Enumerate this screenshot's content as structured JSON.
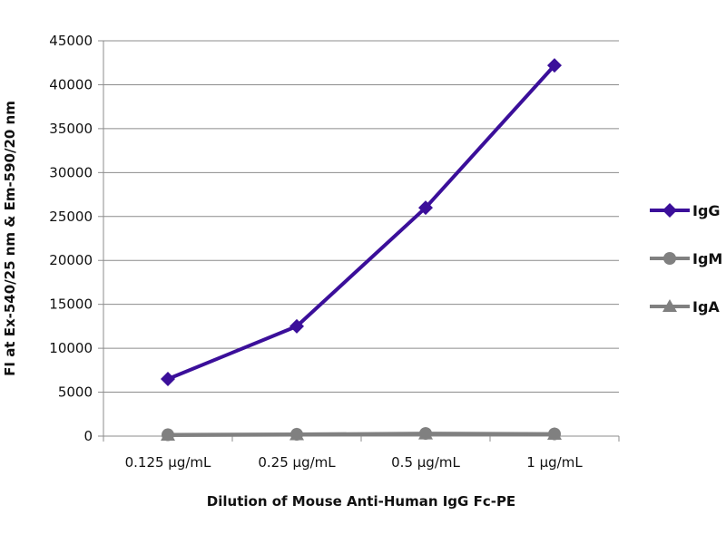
{
  "chart_data": {
    "type": "line",
    "title": "",
    "xlabel": "Dilution of Mouse Anti-Human IgG Fc-PE",
    "ylabel": "FI at Ex-540/25 nm & Em-590/20 nm",
    "categories": [
      "0.125 µg/mL",
      "0.25 µg/mL",
      "0.5 µg/mL",
      "1 µg/mL"
    ],
    "ylim": [
      0,
      45000
    ],
    "yticks": [
      0,
      5000,
      10000,
      15000,
      20000,
      25000,
      30000,
      35000,
      40000,
      45000
    ],
    "grid": true,
    "legend_position": "right",
    "series": [
      {
        "name": "IgG",
        "values": [
          6500,
          12500,
          26000,
          42200
        ],
        "color": "#3b0f9a",
        "marker": "diamond"
      },
      {
        "name": "IgM",
        "values": [
          150,
          200,
          300,
          250
        ],
        "color": "#808080",
        "marker": "circle"
      },
      {
        "name": "IgA",
        "values": [
          100,
          150,
          250,
          200
        ],
        "color": "#808080",
        "marker": "triangle"
      }
    ]
  }
}
